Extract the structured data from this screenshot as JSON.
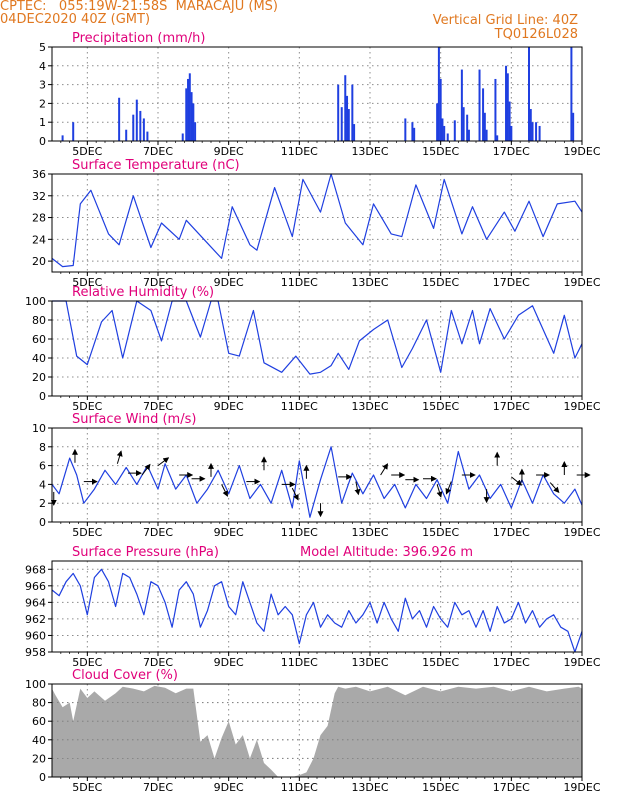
{
  "header": {
    "line1": "CPTEC:   055:19W-21:58S  MARACAJU (MS)",
    "line2": "04DEC2020 40Z (GMT)",
    "right1": "Vertical Grid Line: 40Z",
    "right2": "TQ0126L028"
  },
  "colors": {
    "header": "#e07820",
    "title": "#e0007a",
    "line": "#1f3fe0",
    "cloud": "#a9a9a9",
    "arrow": "#000000"
  },
  "chart_data": [
    {
      "id": "precip",
      "type": "bar",
      "title": "Precipitation (mm/h)",
      "ylim": [
        0,
        5
      ],
      "yticks": [
        "0",
        "1",
        "2",
        "3",
        "4",
        "5"
      ],
      "xticks": [
        "5DEC",
        "7DEC",
        "9DEC",
        "11DEC",
        "13DEC",
        "15DEC",
        "17DEC",
        "19DEC"
      ],
      "events": [
        [
          4.3,
          0.3
        ],
        [
          4.6,
          1.0
        ],
        [
          5.9,
          2.3
        ],
        [
          6.1,
          0.6
        ],
        [
          6.3,
          1.4
        ],
        [
          6.4,
          2.2
        ],
        [
          6.5,
          1.6
        ],
        [
          6.6,
          1.2
        ],
        [
          6.7,
          0.5
        ],
        [
          7.7,
          0.4
        ],
        [
          7.8,
          2.8
        ],
        [
          7.85,
          3.3
        ],
        [
          7.9,
          3.6
        ],
        [
          7.95,
          2.6
        ],
        [
          8.0,
          2.0
        ],
        [
          8.05,
          1.0
        ],
        [
          12.1,
          3.0
        ],
        [
          12.2,
          1.8
        ],
        [
          12.3,
          3.5
        ],
        [
          12.35,
          2.4
        ],
        [
          12.4,
          1.7
        ],
        [
          12.5,
          3.0
        ],
        [
          12.55,
          0.9
        ],
        [
          14.0,
          1.2
        ],
        [
          14.2,
          1.0
        ],
        [
          14.25,
          0.7
        ],
        [
          14.9,
          2.0
        ],
        [
          14.95,
          5.0
        ],
        [
          15.0,
          3.3
        ],
        [
          15.05,
          1.2
        ],
        [
          15.1,
          0.8
        ],
        [
          15.2,
          0.4
        ],
        [
          15.4,
          1.1
        ],
        [
          15.6,
          3.8
        ],
        [
          15.65,
          1.8
        ],
        [
          15.75,
          1.4
        ],
        [
          15.8,
          0.6
        ],
        [
          16.1,
          3.8
        ],
        [
          16.2,
          2.8
        ],
        [
          16.25,
          1.5
        ],
        [
          16.3,
          0.6
        ],
        [
          16.55,
          3.3
        ],
        [
          16.6,
          0.3
        ],
        [
          16.85,
          4.0
        ],
        [
          16.9,
          3.6
        ],
        [
          16.95,
          2.1
        ],
        [
          17.0,
          0.8
        ],
        [
          17.5,
          5.0
        ],
        [
          17.55,
          1.7
        ],
        [
          17.6,
          1.0
        ],
        [
          17.7,
          1.0
        ],
        [
          17.8,
          0.8
        ],
        [
          18.7,
          5.0
        ],
        [
          18.75,
          1.5
        ]
      ]
    },
    {
      "id": "temp",
      "type": "line",
      "title": "Surface Temperature (nC)",
      "ylim": [
        18,
        36
      ],
      "yticks": [
        "20",
        "24",
        "28",
        "32",
        "36"
      ],
      "xticks": [
        "5DEC",
        "7DEC",
        "9DEC",
        "11DEC",
        "13DEC",
        "15DEC",
        "17DEC",
        "19DEC"
      ],
      "x": [
        4.0,
        4.3,
        4.6,
        4.8,
        5.1,
        5.6,
        5.9,
        6.3,
        6.8,
        7.1,
        7.6,
        7.8,
        8.3,
        8.8,
        9.1,
        9.6,
        9.8,
        10.3,
        10.8,
        11.1,
        11.6,
        11.9,
        12.3,
        12.8,
        13.1,
        13.6,
        13.9,
        14.3,
        14.8,
        15.1,
        15.6,
        15.9,
        16.3,
        16.8,
        17.1,
        17.5,
        17.9,
        18.3,
        18.8,
        19.0
      ],
      "y": [
        20.5,
        19.0,
        19.2,
        30.5,
        33.0,
        25.0,
        23.0,
        32.0,
        22.5,
        27.0,
        24.0,
        27.5,
        24.0,
        20.5,
        30.0,
        23.0,
        22.0,
        33.5,
        24.5,
        35.0,
        29.0,
        36.0,
        27.0,
        23.0,
        30.5,
        25.0,
        24.5,
        34.0,
        26.0,
        35.0,
        25.0,
        30.0,
        24.0,
        29.0,
        25.5,
        31.0,
        24.5,
        30.5,
        31.0,
        29.0
      ]
    },
    {
      "id": "rh",
      "type": "line",
      "title": "Relative Humidity (%)",
      "ylim": [
        0,
        100
      ],
      "yticks": [
        "0",
        "20",
        "40",
        "60",
        "80",
        "100"
      ],
      "xticks": [
        "5DEC",
        "7DEC",
        "9DEC",
        "11DEC",
        "13DEC",
        "15DEC",
        "17DEC",
        "19DEC"
      ],
      "x": [
        4.0,
        4.4,
        4.7,
        5.0,
        5.4,
        5.7,
        6.0,
        6.4,
        6.8,
        7.1,
        7.4,
        7.8,
        8.2,
        8.5,
        8.7,
        9.0,
        9.3,
        9.7,
        10.0,
        10.5,
        10.9,
        11.3,
        11.6,
        11.9,
        12.1,
        12.4,
        12.7,
        13.1,
        13.5,
        13.9,
        14.2,
        14.6,
        15.0,
        15.3,
        15.6,
        15.9,
        16.1,
        16.4,
        16.8,
        17.2,
        17.6,
        17.9,
        18.2,
        18.5,
        18.8,
        19.0
      ],
      "y": [
        100,
        100,
        42,
        33,
        78,
        90,
        40,
        100,
        90,
        58,
        100,
        100,
        62,
        100,
        100,
        45,
        42,
        90,
        35,
        25,
        42,
        23,
        25,
        32,
        45,
        28,
        58,
        70,
        80,
        30,
        50,
        80,
        25,
        90,
        55,
        90,
        55,
        92,
        60,
        85,
        95,
        70,
        45,
        85,
        40,
        55
      ]
    },
    {
      "id": "wind",
      "type": "line",
      "title": "Surface Wind (m/s)",
      "ylim": [
        0,
        10
      ],
      "yticks": [
        "0",
        "2",
        "4",
        "6",
        "8",
        "10"
      ],
      "xticks": [
        "5DEC",
        "7DEC",
        "9DEC",
        "11DEC",
        "13DEC",
        "15DEC",
        "17DEC",
        "19DEC"
      ],
      "x": [
        4.0,
        4.2,
        4.5,
        4.7,
        4.9,
        5.2,
        5.5,
        5.8,
        6.1,
        6.4,
        6.7,
        7.0,
        7.2,
        7.5,
        7.8,
        8.1,
        8.4,
        8.7,
        9.0,
        9.3,
        9.6,
        9.9,
        10.2,
        10.5,
        10.8,
        11.0,
        11.3,
        11.6,
        11.9,
        12.2,
        12.5,
        12.8,
        13.1,
        13.4,
        13.7,
        14.0,
        14.3,
        14.6,
        14.9,
        15.2,
        15.5,
        15.8,
        16.1,
        16.4,
        16.7,
        17.0,
        17.3,
        17.6,
        17.9,
        18.2,
        18.5,
        18.8,
        19.0
      ],
      "y": [
        4.0,
        3.0,
        6.8,
        5.0,
        2.0,
        3.5,
        5.5,
        4.0,
        5.8,
        4.0,
        6.0,
        3.5,
        6.2,
        3.5,
        5.0,
        2.0,
        3.5,
        5.5,
        3.0,
        6.0,
        2.5,
        4.0,
        2.0,
        5.5,
        1.5,
        6.5,
        0.5,
        4.5,
        8.0,
        2.0,
        5.2,
        3.0,
        5.0,
        2.5,
        4.0,
        1.5,
        4.0,
        2.5,
        4.5,
        2.0,
        7.5,
        3.5,
        5.0,
        2.5,
        4.0,
        1.5,
        4.5,
        2.0,
        5.0,
        3.0,
        2.0,
        3.5,
        1.8
      ],
      "arrows": [
        {
          "t": 4.05,
          "y": 3.2,
          "u": 0,
          "v": -1
        },
        {
          "t": 4.65,
          "y": 6.3,
          "u": 0,
          "v": 1
        },
        {
          "t": 4.9,
          "y": 4.3,
          "u": 1,
          "v": 0
        },
        {
          "t": 5.85,
          "y": 6.2,
          "u": 0.3,
          "v": 1
        },
        {
          "t": 6.15,
          "y": 5.2,
          "u": 1,
          "v": 0
        },
        {
          "t": 6.55,
          "y": 5.0,
          "u": 0.6,
          "v": 0.8
        },
        {
          "t": 7.0,
          "y": 6.0,
          "u": 0.8,
          "v": 0.6
        },
        {
          "t": 7.6,
          "y": 5.0,
          "u": 1,
          "v": 0
        },
        {
          "t": 7.95,
          "y": 4.6,
          "u": 1,
          "v": 0
        },
        {
          "t": 8.5,
          "y": 4.8,
          "u": 0,
          "v": 1
        },
        {
          "t": 8.8,
          "y": 4.0,
          "u": 0.5,
          "v": -1
        },
        {
          "t": 9.5,
          "y": 4.3,
          "u": 1,
          "v": 0
        },
        {
          "t": 10.0,
          "y": 5.5,
          "u": 0,
          "v": 1
        },
        {
          "t": 10.5,
          "y": 4.0,
          "u": 1,
          "v": 0
        },
        {
          "t": 10.8,
          "y": 3.6,
          "u": 0.5,
          "v": -1
        },
        {
          "t": 11.2,
          "y": 4.6,
          "u": 0,
          "v": 1
        },
        {
          "t": 11.6,
          "y": 2.0,
          "u": 0,
          "v": -1
        },
        {
          "t": 12.1,
          "y": 4.8,
          "u": 1,
          "v": 0
        },
        {
          "t": 12.6,
          "y": 4.3,
          "u": 0.2,
          "v": -1
        },
        {
          "t": 13.3,
          "y": 5.0,
          "u": 0.5,
          "v": 0.8
        },
        {
          "t": 13.6,
          "y": 5.0,
          "u": 1,
          "v": 0
        },
        {
          "t": 14.0,
          "y": 4.5,
          "u": 1,
          "v": 0
        },
        {
          "t": 14.5,
          "y": 4.6,
          "u": 1,
          "v": 0
        },
        {
          "t": 14.9,
          "y": 4.0,
          "u": 0.3,
          "v": -1
        },
        {
          "t": 15.3,
          "y": 4.3,
          "u": -0.4,
          "v": -1
        },
        {
          "t": 15.6,
          "y": 5.0,
          "u": 1,
          "v": 0
        },
        {
          "t": 16.3,
          "y": 3.5,
          "u": 0,
          "v": -1
        },
        {
          "t": 16.6,
          "y": 6.0,
          "u": 0,
          "v": 1
        },
        {
          "t": 17.0,
          "y": 4.8,
          "u": 1,
          "v": -0.8
        },
        {
          "t": 17.3,
          "y": 4.2,
          "u": 0,
          "v": 1
        },
        {
          "t": 17.7,
          "y": 5.0,
          "u": 1,
          "v": 0
        },
        {
          "t": 18.1,
          "y": 4.2,
          "u": 0.7,
          "v": -0.8
        },
        {
          "t": 18.5,
          "y": 5.0,
          "u": 0,
          "v": 1
        },
        {
          "t": 18.85,
          "y": 5.0,
          "u": 1,
          "v": 0
        }
      ]
    },
    {
      "id": "pres",
      "type": "line",
      "title": "Surface Pressure (hPa)",
      "subtitle": "Model Altitude: 396.926 m",
      "ylim": [
        958,
        969
      ],
      "yticks": [
        "958",
        "960",
        "962",
        "964",
        "966",
        "968"
      ],
      "xticks": [
        "5DEC",
        "7DEC",
        "9DEC",
        "11DEC",
        "13DEC",
        "15DEC",
        "17DEC",
        "19DEC"
      ],
      "x": [
        4.0,
        4.2,
        4.4,
        4.6,
        4.8,
        5.0,
        5.2,
        5.4,
        5.6,
        5.8,
        6.0,
        6.2,
        6.4,
        6.6,
        6.8,
        7.0,
        7.2,
        7.4,
        7.6,
        7.8,
        8.0,
        8.2,
        8.4,
        8.6,
        8.8,
        9.0,
        9.2,
        9.4,
        9.6,
        9.8,
        10.0,
        10.2,
        10.4,
        10.6,
        10.8,
        11.0,
        11.2,
        11.4,
        11.6,
        11.8,
        12.0,
        12.2,
        12.4,
        12.6,
        12.8,
        13.0,
        13.2,
        13.4,
        13.6,
        13.8,
        14.0,
        14.2,
        14.4,
        14.6,
        14.8,
        15.0,
        15.2,
        15.4,
        15.6,
        15.8,
        16.0,
        16.2,
        16.4,
        16.6,
        16.8,
        17.0,
        17.2,
        17.4,
        17.6,
        17.8,
        18.0,
        18.2,
        18.4,
        18.6,
        18.8,
        19.0
      ],
      "y": [
        965.5,
        964.8,
        966.5,
        967.5,
        966.0,
        962.5,
        967.0,
        968.0,
        966.5,
        963.5,
        967.5,
        967.0,
        965.0,
        962.5,
        966.5,
        966.0,
        964.0,
        961.0,
        965.5,
        966.5,
        965.0,
        961.0,
        963.0,
        966.0,
        966.5,
        963.5,
        962.5,
        966.5,
        964.0,
        961.5,
        960.5,
        965.0,
        962.5,
        963.5,
        962.5,
        959.0,
        962.5,
        964.0,
        961.0,
        962.5,
        961.5,
        961.0,
        963.0,
        961.5,
        962.5,
        964.0,
        961.5,
        964.0,
        962.0,
        960.5,
        964.5,
        962.0,
        963.0,
        961.0,
        963.5,
        962.0,
        961.0,
        964.0,
        962.5,
        963.0,
        961.0,
        963.0,
        960.5,
        963.5,
        961.5,
        962.0,
        964.0,
        961.5,
        963.0,
        961.0,
        962.0,
        962.5,
        961.0,
        960.5,
        958.0,
        960.5
      ]
    },
    {
      "id": "cloud",
      "type": "area",
      "title": "Cloud Cover (%)",
      "ylim": [
        0,
        100
      ],
      "yticks": [
        "0",
        "20",
        "40",
        "60",
        "80",
        "100"
      ],
      "xticks": [
        "5DEC",
        "7DEC",
        "9DEC",
        "11DEC",
        "13DEC",
        "15DEC",
        "17DEC",
        "19DEC"
      ],
      "x": [
        4.0,
        4.1,
        4.3,
        4.5,
        4.6,
        4.8,
        5.0,
        5.2,
        5.5,
        5.8,
        6.0,
        6.3,
        6.6,
        6.9,
        7.2,
        7.5,
        7.8,
        8.0,
        8.2,
        8.4,
        8.6,
        8.8,
        9.0,
        9.2,
        9.4,
        9.6,
        9.8,
        10.0,
        10.2,
        10.4,
        10.6,
        10.8,
        11.0,
        11.2,
        11.4,
        11.6,
        11.8,
        12.0,
        12.1,
        12.3,
        12.6,
        13.0,
        13.5,
        14.0,
        14.5,
        15.0,
        15.5,
        16.0,
        16.5,
        17.0,
        17.5,
        18.0,
        18.5,
        18.9,
        19.0
      ],
      "y": [
        95,
        88,
        75,
        80,
        60,
        95,
        85,
        92,
        82,
        90,
        97,
        95,
        92,
        98,
        96,
        90,
        95,
        95,
        38,
        45,
        20,
        42,
        60,
        35,
        45,
        20,
        40,
        15,
        8,
        0,
        0,
        0,
        2,
        5,
        20,
        45,
        55,
        90,
        97,
        95,
        97,
        92,
        97,
        88,
        97,
        92,
        97,
        95,
        97,
        92,
        97,
        92,
        95,
        97,
        95
      ]
    }
  ]
}
